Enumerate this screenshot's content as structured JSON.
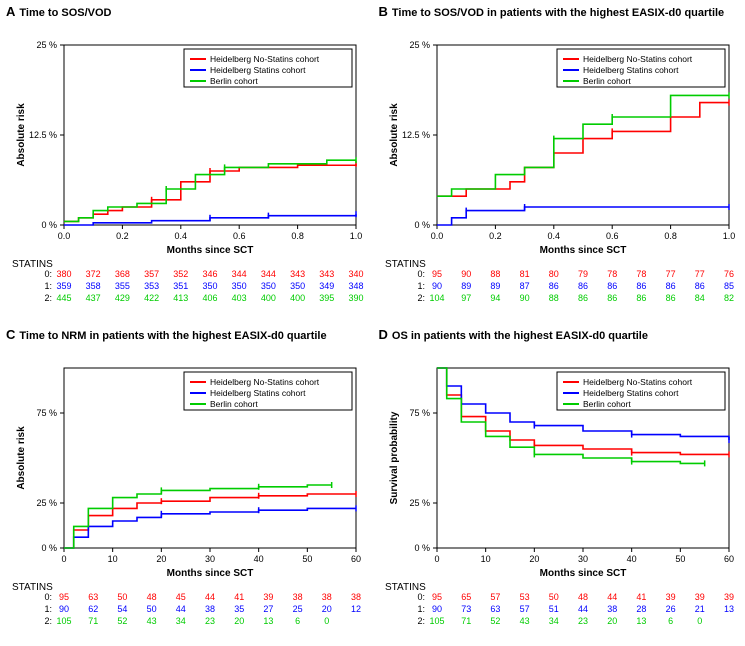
{
  "colors": {
    "red": "#ff0000",
    "blue": "#0000ff",
    "green": "#00cc00",
    "black": "#000000",
    "bg": "#ffffff"
  },
  "legend_labels": [
    "Heidelberg No-Statins cohort",
    "Heidelberg Statins cohort",
    "Berlin cohort"
  ],
  "statins_label": "STATINS",
  "panelA": {
    "letter": "A",
    "title": "Time to SOS/VOD",
    "type": "step-cuminc",
    "xlabel": "Months since SCT",
    "ylabel": "Absolute risk",
    "xlim": [
      0,
      1
    ],
    "xticks": [
      0.0,
      0.2,
      0.4,
      0.6,
      0.8,
      1.0
    ],
    "ylim": [
      0,
      25
    ],
    "yticks": [
      0,
      12.5,
      25
    ],
    "yticklabels": [
      "0 %",
      "12.5 %",
      "25 %"
    ],
    "series": [
      {
        "color": "red",
        "x": [
          0,
          0.05,
          0.1,
          0.15,
          0.2,
          0.3,
          0.4,
          0.5,
          0.6,
          0.8,
          1.0
        ],
        "y": [
          0.5,
          1,
          1.5,
          2,
          2.5,
          3.5,
          6,
          7.5,
          8,
          8.3,
          8.5
        ]
      },
      {
        "color": "blue",
        "x": [
          0,
          0.1,
          0.3,
          0.5,
          0.7,
          1.0
        ],
        "y": [
          0,
          0.3,
          0.6,
          1,
          1.3,
          1.5
        ]
      },
      {
        "color": "green",
        "x": [
          0,
          0.05,
          0.1,
          0.15,
          0.25,
          0.35,
          0.45,
          0.55,
          0.7,
          0.9,
          1.0
        ],
        "y": [
          0.5,
          1,
          2,
          2.5,
          3,
          5,
          7,
          8,
          8.5,
          9,
          9
        ]
      }
    ],
    "risk": {
      "x": [
        0.0,
        0.1,
        0.2,
        0.3,
        0.4,
        0.5,
        0.6,
        0.7,
        0.8,
        0.9,
        1.0
      ],
      "rows": [
        {
          "label": "0:",
          "color": "red",
          "nums": [
            380,
            372,
            368,
            357,
            352,
            346,
            344,
            344,
            343,
            343,
            340
          ]
        },
        {
          "label": "1:",
          "color": "blue",
          "nums": [
            359,
            358,
            355,
            353,
            351,
            350,
            350,
            350,
            350,
            349,
            348
          ]
        },
        {
          "label": "2:",
          "color": "green",
          "nums": [
            445,
            437,
            429,
            422,
            413,
            406,
            403,
            400,
            400,
            395,
            390
          ]
        }
      ]
    }
  },
  "panelB": {
    "letter": "B",
    "title": "Time to SOS/VOD in patients with the highest EASIX-d0 quartile",
    "type": "step-cuminc",
    "xlabel": "Months since SCT",
    "ylabel": "Absolute risk",
    "xlim": [
      0,
      1
    ],
    "xticks": [
      0.0,
      0.2,
      0.4,
      0.6,
      0.8,
      1.0
    ],
    "ylim": [
      0,
      25
    ],
    "yticks": [
      0,
      12.5,
      25
    ],
    "yticklabels": [
      "0 %",
      "12.5 %",
      "25 %"
    ],
    "series": [
      {
        "color": "red",
        "x": [
          0,
          0.05,
          0.1,
          0.15,
          0.25,
          0.3,
          0.4,
          0.5,
          0.6,
          0.8,
          0.9,
          1.0
        ],
        "y": [
          4,
          4,
          5,
          5,
          6,
          8,
          10,
          12,
          13,
          15,
          17,
          17
        ]
      },
      {
        "color": "blue",
        "x": [
          0,
          0.05,
          0.1,
          0.3,
          1.0
        ],
        "y": [
          0,
          1,
          2,
          2.5,
          2.5
        ]
      },
      {
        "color": "green",
        "x": [
          0,
          0.05,
          0.1,
          0.2,
          0.3,
          0.4,
          0.5,
          0.6,
          0.8,
          1.0
        ],
        "y": [
          4,
          5,
          5,
          7,
          8,
          12,
          14,
          15,
          18,
          18
        ]
      }
    ],
    "risk": {
      "x": [
        0.0,
        0.1,
        0.2,
        0.3,
        0.4,
        0.5,
        0.6,
        0.7,
        0.8,
        0.9,
        1.0
      ],
      "rows": [
        {
          "label": "0:",
          "color": "red",
          "nums": [
            95,
            90,
            88,
            81,
            80,
            79,
            78,
            78,
            77,
            77,
            76
          ]
        },
        {
          "label": "1:",
          "color": "blue",
          "nums": [
            90,
            89,
            89,
            87,
            86,
            86,
            86,
            86,
            86,
            86,
            85
          ]
        },
        {
          "label": "2:",
          "color": "green",
          "nums": [
            104,
            97,
            94,
            90,
            88,
            86,
            86,
            86,
            86,
            84,
            82
          ]
        }
      ]
    }
  },
  "panelC": {
    "letter": "C",
    "title": "Time to NRM in patients with the highest EASIX-d0 quartile",
    "type": "step-cuminc",
    "xlabel": "Months since SCT",
    "ylabel": "Absolute risk",
    "xlim": [
      0,
      60
    ],
    "xticks": [
      0,
      10,
      20,
      30,
      40,
      50,
      60
    ],
    "ylim": [
      0,
      100
    ],
    "yticks": [
      0,
      25,
      75
    ],
    "yticklabels": [
      "0 %",
      "25 %",
      "75 %"
    ],
    "series": [
      {
        "color": "red",
        "x": [
          0,
          2,
          5,
          10,
          15,
          20,
          30,
          40,
          50,
          60
        ],
        "y": [
          0,
          10,
          18,
          22,
          25,
          26,
          28,
          29,
          30,
          30
        ]
      },
      {
        "color": "blue",
        "x": [
          0,
          2,
          5,
          10,
          15,
          20,
          30,
          40,
          50,
          60
        ],
        "y": [
          0,
          6,
          12,
          15,
          17,
          19,
          20,
          21,
          22,
          22
        ]
      },
      {
        "color": "green",
        "x": [
          0,
          2,
          5,
          10,
          15,
          20,
          30,
          40,
          50,
          55
        ],
        "y": [
          0,
          12,
          22,
          28,
          30,
          32,
          33,
          34,
          35,
          35
        ]
      }
    ],
    "risk": {
      "x": [
        0,
        5,
        10,
        15,
        20,
        25,
        30,
        35,
        40,
        45,
        50
      ],
      "rows": [
        {
          "label": "0:",
          "color": "red",
          "nums": [
            95,
            63,
            50,
            48,
            45,
            44,
            41,
            39,
            38,
            38,
            38
          ]
        },
        {
          "label": "1:",
          "color": "blue",
          "nums": [
            90,
            62,
            54,
            50,
            44,
            38,
            35,
            27,
            25,
            20,
            12
          ]
        },
        {
          "label": "2:",
          "color": "green",
          "nums": [
            105,
            71,
            52,
            43,
            34,
            23,
            20,
            13,
            6,
            0,
            ""
          ]
        }
      ]
    }
  },
  "panelD": {
    "letter": "D",
    "title": "OS in patients with the highest EASIX-d0 quartile",
    "type": "km-survival",
    "xlabel": "Months since SCT",
    "ylabel": "Survival probability",
    "xlim": [
      0,
      60
    ],
    "xticks": [
      0,
      10,
      20,
      30,
      40,
      50,
      60
    ],
    "ylim": [
      0,
      100
    ],
    "yticks": [
      0,
      25,
      75
    ],
    "yticklabels": [
      "0 %",
      "25 %",
      "75 %"
    ],
    "series": [
      {
        "color": "red",
        "x": [
          0,
          2,
          5,
          10,
          15,
          20,
          30,
          40,
          50,
          60
        ],
        "y": [
          100,
          85,
          73,
          65,
          60,
          57,
          55,
          53,
          52,
          52
        ]
      },
      {
        "color": "blue",
        "x": [
          0,
          2,
          5,
          10,
          15,
          20,
          30,
          40,
          50,
          60
        ],
        "y": [
          100,
          90,
          80,
          75,
          70,
          68,
          65,
          63,
          62,
          60
        ]
      },
      {
        "color": "green",
        "x": [
          0,
          2,
          5,
          10,
          15,
          20,
          30,
          40,
          50,
          55
        ],
        "y": [
          100,
          83,
          70,
          62,
          56,
          52,
          50,
          48,
          47,
          47
        ]
      }
    ],
    "risk": {
      "x": [
        0,
        5,
        10,
        15,
        20,
        25,
        30,
        35,
        40,
        45,
        50
      ],
      "rows": [
        {
          "label": "0:",
          "color": "red",
          "nums": [
            95,
            65,
            57,
            53,
            50,
            48,
            44,
            41,
            39,
            39,
            39
          ]
        },
        {
          "label": "1:",
          "color": "blue",
          "nums": [
            90,
            73,
            63,
            57,
            51,
            44,
            38,
            28,
            26,
            21,
            13
          ]
        },
        {
          "label": "2:",
          "color": "green",
          "nums": [
            105,
            71,
            52,
            43,
            34,
            23,
            20,
            13,
            6,
            0,
            ""
          ]
        }
      ]
    }
  }
}
